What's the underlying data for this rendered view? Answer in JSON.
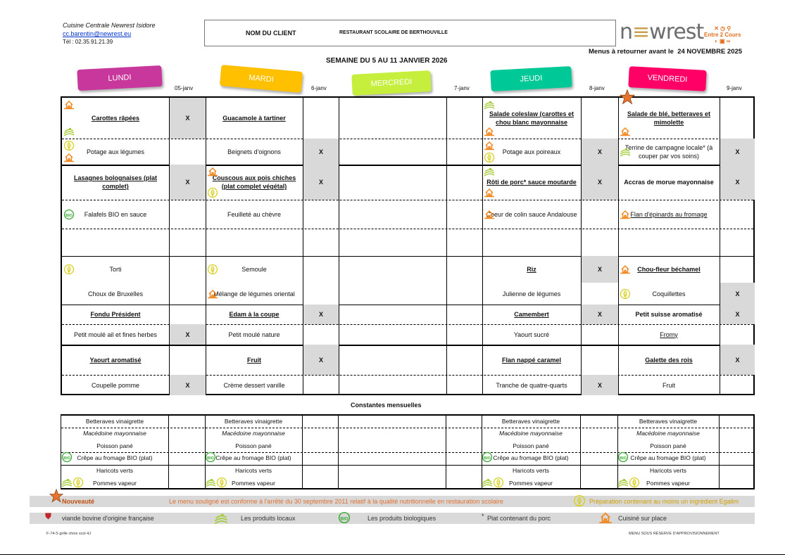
{
  "header": {
    "kitchen": "Cuisine Centrale Newrest Isidore",
    "email": "cc.barentin@newrest.eu",
    "phone": "Tél : 02.35.91.21.39",
    "client_label": "NOM DU CLIENT",
    "client_name": "RESTAURANT SCOLAIRE DE BERTHOUVILLE",
    "logo": "newrest",
    "logo2": "Entre 2 Cours",
    "week": "SEMAINE DU 5 AU 11 JANVIER 2026",
    "return_label": "Menus à retourner avant le",
    "return_date": "24 NOVEMBRE 2025"
  },
  "colors": {
    "lundi": "#c8379b",
    "mardi": "#ffc000",
    "mercredi": "#c5ef3c",
    "jeudi": "#00c896",
    "vendredi": "#ff0066",
    "grey": "#d9d9d9",
    "house": "#f08a24",
    "local": "#a5cc3a",
    "egalim": "#d8d020",
    "bio": "#3aaa35",
    "star": "#e8732a"
  },
  "days": [
    {
      "name": "LUNDI",
      "date": "05-janv",
      "items": [
        {
          "t": "Carottes râpées",
          "s": "main",
          "x": true,
          "i": [
            "house-icon",
            "local-products-icon"
          ]
        },
        {
          "t": "Potage aux légumes",
          "s": "plain",
          "x": false,
          "i": [
            "egalim-icon",
            "house-icon"
          ]
        },
        {
          "t": "Lasagnes bolognaises (plat complet)",
          "s": "main",
          "x": true,
          "i": []
        },
        {
          "t": "Falafels BIO en sauce",
          "s": "plain",
          "x": false,
          "i": [
            "bio-icon"
          ]
        },
        null,
        {
          "t": "Torti",
          "s": "plain",
          "x": false,
          "i": [
            "egalim-icon"
          ]
        },
        {
          "t": "Choux de Bruxelles",
          "s": "plain",
          "x": false,
          "i": []
        },
        {
          "t": "Fondu Président",
          "s": "main",
          "x": false,
          "i": []
        },
        {
          "t": "Petit moulé ail et fines herbes",
          "s": "plain",
          "x": true,
          "i": []
        },
        {
          "t": "Yaourt aromatisé",
          "s": "main",
          "x": false,
          "i": []
        },
        {
          "t": "Coupelle pomme",
          "s": "plain",
          "x": true,
          "i": []
        }
      ]
    },
    {
      "name": "MARDI",
      "date": "6-janv",
      "items": [
        {
          "t": "Guacamole à tartiner",
          "s": "main",
          "x": false,
          "i": []
        },
        {
          "t": "Beignets d'oignons",
          "s": "plain",
          "x": true,
          "i": []
        },
        {
          "t": "Couscous aux pois chiches (plat complet végétal)",
          "s": "main",
          "x": true,
          "i": [
            "house-icon",
            "egalim-icon"
          ]
        },
        {
          "t": "Feuilleté au chèvre",
          "s": "plain",
          "x": false,
          "i": []
        },
        null,
        {
          "t": "Semoule",
          "s": "plain",
          "x": false,
          "i": [
            "egalim-icon"
          ]
        },
        {
          "t": "Mélange de légumes oriental",
          "s": "plain",
          "x": false,
          "i": [
            "house-icon"
          ]
        },
        {
          "t": "Edam à la coupe",
          "s": "main",
          "x": true,
          "i": []
        },
        {
          "t": "Petit moulé nature",
          "s": "plain",
          "x": false,
          "i": []
        },
        {
          "t": "Fruit",
          "s": "main",
          "x": true,
          "i": []
        },
        {
          "t": "Crème dessert vanille",
          "s": "plain",
          "x": false,
          "i": []
        }
      ]
    },
    {
      "name": "MERCREDI",
      "date": "7-janv",
      "items": [
        null,
        null,
        null,
        null,
        null,
        null,
        null,
        null,
        null,
        null,
        null
      ]
    },
    {
      "name": "JEUDI",
      "date": "8-janv",
      "items": [
        {
          "t": "Salade coleslaw (carottes et chou blanc mayonnaise",
          "s": "main",
          "x": false,
          "i": [
            "local-products-icon",
            "house-icon"
          ]
        },
        {
          "t": "Potage aux poireaux",
          "s": "plain",
          "x": true,
          "i": [
            "house-icon",
            "egalim-icon"
          ]
        },
        {
          "t": "Rôti de porc* sauce moutarde",
          "s": "main",
          "x": true,
          "i": [
            "local-products-icon",
            "house-icon"
          ]
        },
        {
          "t": "Coeur de colin sauce Andalouse",
          "s": "plain",
          "x": false,
          "i": [
            "house-icon"
          ]
        },
        null,
        {
          "t": "Riz",
          "s": "main",
          "x": true,
          "i": []
        },
        {
          "t": "Julienne de légumes",
          "s": "plain",
          "x": false,
          "i": []
        },
        {
          "t": "Camembert",
          "s": "main",
          "x": true,
          "i": []
        },
        {
          "t": "Yaourt sucré",
          "s": "plain",
          "x": false,
          "i": []
        },
        {
          "t": "Flan nappé caramel",
          "s": "main",
          "x": false,
          "i": []
        },
        {
          "t": "Tranche de quatre-quarts",
          "s": "plain",
          "x": true,
          "i": []
        }
      ]
    },
    {
      "name": "VENDREDI",
      "date": "9-janv",
      "items": [
        {
          "t": "Salade de blé, betteraves et mimolette",
          "s": "main",
          "x": false,
          "i": [
            "star-icon",
            "house-icon"
          ]
        },
        {
          "t": "Terrine de campagne locale* (à couper par vos soins)",
          "s": "plain",
          "x": true,
          "i": [
            "local-products-icon"
          ]
        },
        {
          "t": "Accras de morue mayonnaise",
          "s": "bold",
          "x": true,
          "i": []
        },
        {
          "t": "Flan d'épinards au fromage",
          "s": "ul",
          "x": false,
          "i": [
            "house-icon"
          ]
        },
        null,
        {
          "t": "Chou-fleur béchamel",
          "s": "main",
          "x": false,
          "i": [
            "house-icon"
          ]
        },
        {
          "t": "Coquillettes",
          "s": "plain",
          "x": true,
          "i": [
            "egalim-icon"
          ]
        },
        {
          "t": "Petit suisse aromatisé",
          "s": "bold",
          "x": true,
          "i": []
        },
        {
          "t": "Fromy",
          "s": "ul",
          "x": false,
          "i": []
        },
        {
          "t": "Galette des rois",
          "s": "main",
          "x": true,
          "i": []
        },
        {
          "t": "Fruit",
          "s": "plain",
          "x": false,
          "i": []
        }
      ]
    }
  ],
  "x_mark": "X",
  "constantes": {
    "title": "Constantes mensuelles",
    "items": [
      "Betteraves vinaigrette",
      "Macédoine mayonnaise",
      "Poisson pané",
      "Crêpe au fromage BIO (plat)",
      "Haricots verts",
      "Pommes vapeur"
    ],
    "days_with_items": [
      0,
      1,
      3,
      4
    ]
  },
  "legend": {
    "new": "Nouveauté",
    "conform": "Le menu souligné est conforme à l'arrêté du 30 septembre 2011 relatif à la qualité nutritionnelle en restauration scolaire",
    "egalim": "Préparation contenant au moins un ingrédient Egalim",
    "beef": "viande bovine d'origine française",
    "local": "Les produits locaux",
    "bio": "Les produits biologiques",
    "pork_mark": "*",
    "pork": "Plat contenant du porc",
    "house": "Cuisiné sur place"
  },
  "footer": {
    "ref": "F-74-S grille choix scol 4J",
    "reserve": "MENU SOUS RÉSERVE D'APPROVISIONNEMENT"
  }
}
